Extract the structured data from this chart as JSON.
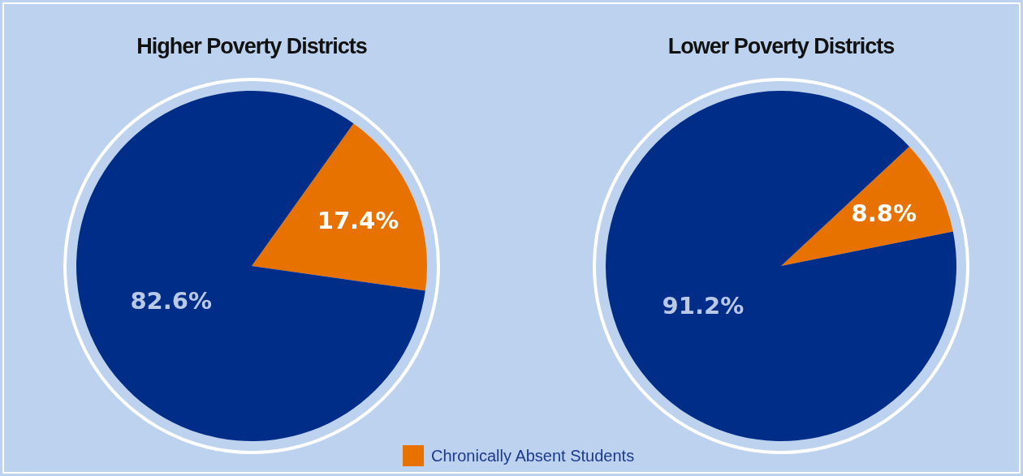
{
  "chart_data": [
    {
      "type": "pie",
      "title": "Higher Poverty Districts",
      "categories": [
        "Chronically Absent Students",
        null
      ],
      "values": [
        17.4,
        82.6
      ],
      "colors": [
        "#e87200",
        "#002d87"
      ],
      "value_labels": [
        "17.4%",
        "82.6%"
      ],
      "legend": "bottom"
    },
    {
      "type": "pie",
      "title": "Lower Poverty Districts",
      "categories": [
        null,
        null
      ],
      "values": [
        8.8,
        91.2
      ],
      "colors": [
        "#e87200",
        "#002d87"
      ],
      "value_labels": [
        "8.8%",
        "91.2%"
      ]
    }
  ]
}
